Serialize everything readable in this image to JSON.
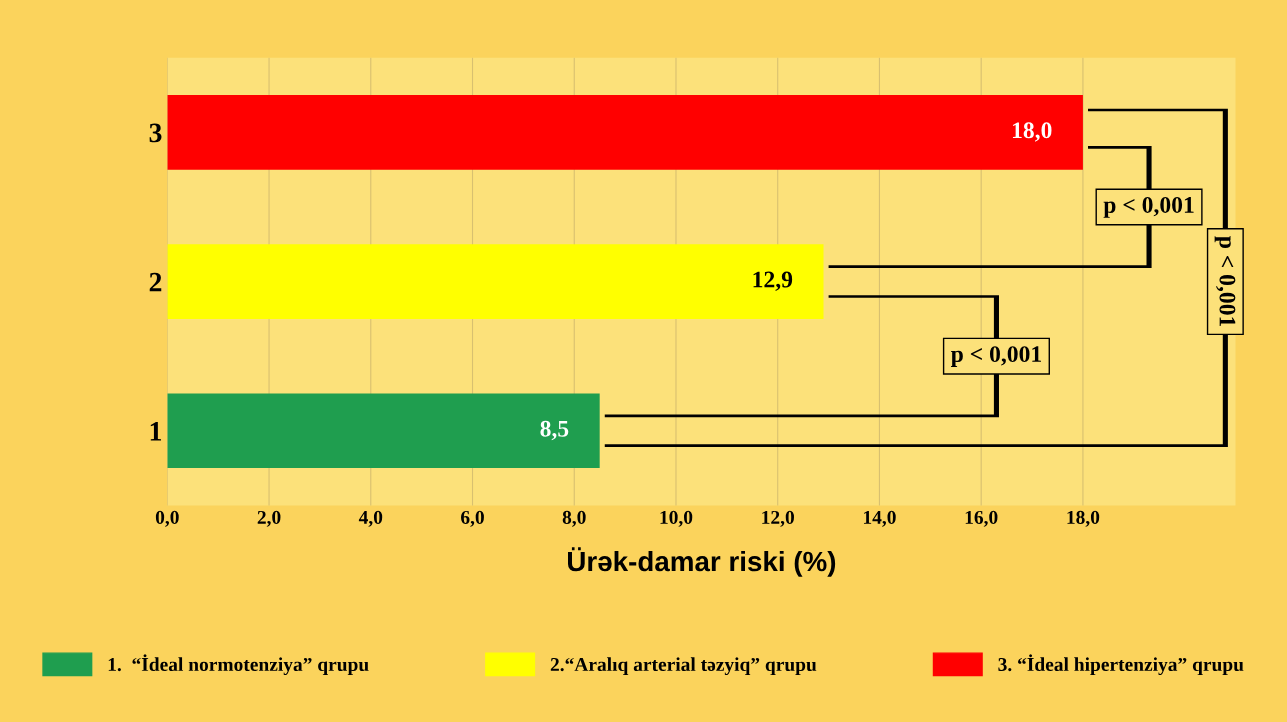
{
  "chart_data": {
    "type": "bar",
    "orientation": "horizontal",
    "xlabel": "Ürək-damar riski (%)",
    "categories": [
      "3",
      "2",
      "1"
    ],
    "series": [
      {
        "name": "1.  “İdeal normotenziya” qrupu",
        "color": "#1f9e4f",
        "values": [
          null,
          null,
          8.5
        ],
        "value_labels": [
          null,
          null,
          "8,5"
        ]
      },
      {
        "name": "2.“Aralıq arterial təzyiq” qrupu",
        "color": "#ffff00",
        "values": [
          null,
          12.9,
          null
        ],
        "value_labels": [
          null,
          "12,9",
          null
        ]
      },
      {
        "name": "3. “İdeal hipertenziya” qrupu",
        "color": "#ff0000",
        "values": [
          18.0,
          null,
          null
        ],
        "value_labels": [
          "18,0",
          null,
          null
        ]
      }
    ],
    "stacked": true,
    "xlim": [
      0,
      21
    ],
    "xticks": [
      {
        "value": 0,
        "label": "0,0"
      },
      {
        "value": 2,
        "label": "2,0"
      },
      {
        "value": 4,
        "label": "4,0"
      },
      {
        "value": 6,
        "label": "6,0"
      },
      {
        "value": 8,
        "label": "8,0"
      },
      {
        "value": 10,
        "label": "10,0"
      },
      {
        "value": 12,
        "label": "12,0"
      },
      {
        "value": 14,
        "label": "14,0"
      },
      {
        "value": 16,
        "label": "16,0"
      },
      {
        "value": 18,
        "label": "18,0"
      }
    ],
    "grid": "x",
    "legend": "bottom",
    "annotations": [
      "p < 0,001",
      "p < 0,001",
      "p < 0,001"
    ]
  }
}
